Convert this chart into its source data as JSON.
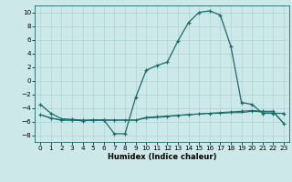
{
  "xlabel": "Humidex (Indice chaleur)",
  "ylabel": "",
  "background_color": "#cce8e8",
  "grid_color": "#add4d4",
  "line_color": "#1a6b6b",
  "xlim": [
    -0.5,
    23.5
  ],
  "ylim": [
    -9,
    11
  ],
  "xticks": [
    0,
    1,
    2,
    3,
    4,
    5,
    6,
    7,
    8,
    9,
    10,
    11,
    12,
    13,
    14,
    15,
    16,
    17,
    18,
    19,
    20,
    21,
    22,
    23
  ],
  "yticks": [
    -8,
    -6,
    -4,
    -2,
    0,
    2,
    4,
    6,
    8,
    10
  ],
  "line1_x": [
    0,
    1,
    2,
    3,
    4,
    5,
    6,
    7,
    8,
    9,
    10,
    11,
    12,
    13,
    14,
    15,
    16,
    17,
    18,
    19,
    20,
    21,
    22,
    23
  ],
  "line1_y": [
    -3.5,
    -4.8,
    -5.6,
    -5.7,
    -5.8,
    -5.8,
    -5.8,
    -7.8,
    -7.8,
    -2.5,
    1.5,
    2.2,
    2.7,
    5.8,
    8.5,
    10.0,
    10.2,
    9.6,
    5.0,
    -3.2,
    -3.5,
    -4.8,
    -4.8,
    -4.8
  ],
  "line2_x": [
    0,
    1,
    2,
    3,
    4,
    5,
    6,
    7,
    8,
    9,
    10,
    11,
    12,
    13,
    14,
    15,
    16,
    17,
    18,
    19,
    20,
    21,
    22,
    23
  ],
  "line2_y": [
    -5.0,
    -5.5,
    -5.8,
    -5.8,
    -5.9,
    -5.8,
    -5.8,
    -5.8,
    -5.8,
    -5.8,
    -5.4,
    -5.3,
    -5.2,
    -5.1,
    -5.0,
    -4.9,
    -4.8,
    -4.7,
    -4.6,
    -4.5,
    -4.4,
    -4.5,
    -4.5,
    -6.3
  ],
  "line3_x": [
    0,
    1,
    2,
    3,
    4,
    5,
    6,
    7,
    8,
    9,
    10,
    11,
    12,
    13,
    14,
    15,
    16,
    17,
    18,
    19,
    20,
    21,
    22,
    23
  ],
  "line3_y": [
    -5.0,
    -5.5,
    -5.8,
    -5.8,
    -5.9,
    -5.8,
    -5.8,
    -5.8,
    -5.8,
    -5.8,
    -5.5,
    -5.4,
    -5.3,
    -5.1,
    -5.0,
    -4.9,
    -4.8,
    -4.8,
    -4.7,
    -4.7,
    -4.5,
    -4.6,
    -4.6,
    -6.3
  ],
  "xlabel_fontsize": 6.0,
  "tick_fontsize": 5.2
}
